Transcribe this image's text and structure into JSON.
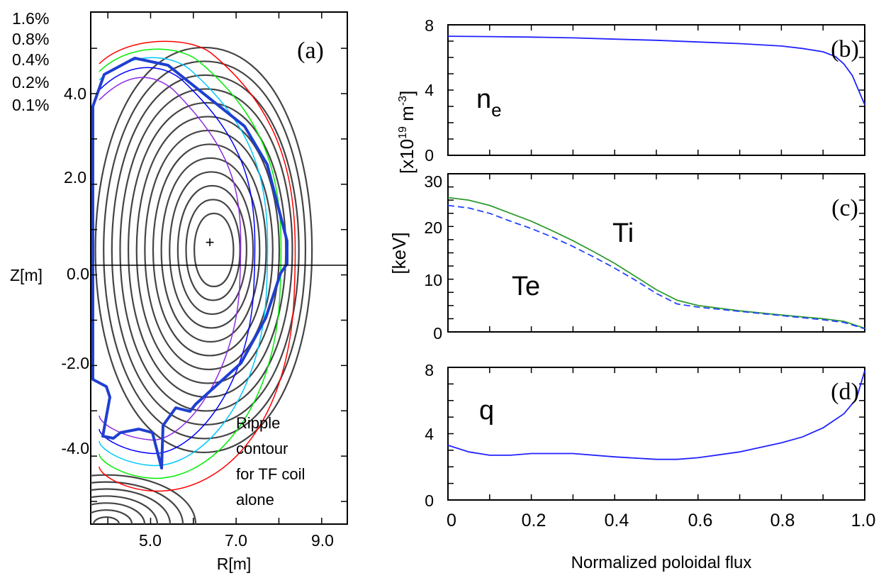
{
  "chart_data": [
    {
      "id": "a",
      "type": "contour",
      "panel_label": "(a)",
      "xlabel": "R[m]",
      "ylabel": "Z[m]",
      "xticks": [
        "5.0",
        "7.0",
        "9.0"
      ],
      "yticks": [
        "4.0",
        "2.0",
        "0.0",
        "-2.0",
        "-4.0"
      ],
      "xlim": [
        3.6,
        9.6
      ],
      "ylim": [
        -5.5,
        5.8
      ],
      "ripple_legend": [
        {
          "label": "1.6%",
          "color": "#ff0000"
        },
        {
          "label": "0.8%",
          "color": "#00ee00"
        },
        {
          "label": "0.4%",
          "color": "#00c8ff"
        },
        {
          "label": "0.2%",
          "color": "#0000ff"
        },
        {
          "label": "0.1%",
          "color": "#8a2be2"
        }
      ],
      "axis_center": {
        "R": 6.5,
        "Z": 0.55
      },
      "annotation": [
        "Ripple",
        "contour",
        "for TF coil",
        "alone"
      ],
      "wall_color": "#1f3fd0"
    },
    {
      "id": "b",
      "type": "line",
      "panel_label": "(b)",
      "ylabel_base": "[x10",
      "ylabel_exp1": "19",
      "ylabel_mid": " m",
      "ylabel_exp2": "-3",
      "ylabel_end": "]",
      "label_main": "n",
      "label_sub": "e",
      "ylim": [
        0,
        8
      ],
      "yticks": [
        "0",
        "4",
        "8"
      ],
      "series": [
        {
          "color": "#2222ff",
          "x": [
            0,
            0.1,
            0.2,
            0.3,
            0.4,
            0.5,
            0.6,
            0.7,
            0.8,
            0.85,
            0.9,
            0.93,
            0.95,
            0.97,
            1.0
          ],
          "y": [
            7.3,
            7.28,
            7.25,
            7.2,
            7.12,
            7.05,
            6.95,
            6.85,
            6.7,
            6.55,
            6.35,
            6.05,
            5.6,
            4.9,
            3.1
          ]
        }
      ]
    },
    {
      "id": "c",
      "type": "line",
      "panel_label": "(c)",
      "ylabel": "[keV]",
      "ylim": [
        0,
        30
      ],
      "yticks": [
        "0",
        "10",
        "20",
        "30"
      ],
      "series_labels": {
        "ti": "Ti",
        "te": "Te"
      },
      "series": [
        {
          "key": "ti",
          "color": "#2e9b2e",
          "dash": "",
          "x": [
            0,
            0.05,
            0.1,
            0.15,
            0.2,
            0.25,
            0.3,
            0.35,
            0.4,
            0.45,
            0.5,
            0.55,
            0.6,
            0.7,
            0.8,
            0.9,
            0.95,
            1.0
          ],
          "y": [
            25.5,
            25,
            24,
            22.5,
            21,
            19.2,
            17.3,
            15.2,
            13,
            10.5,
            8,
            6,
            5,
            4,
            3.2,
            2.5,
            2,
            0.7
          ]
        },
        {
          "key": "te",
          "color": "#2244ff",
          "dash": "9,5",
          "x": [
            0,
            0.05,
            0.1,
            0.15,
            0.2,
            0.25,
            0.3,
            0.35,
            0.4,
            0.45,
            0.5,
            0.55,
            0.6,
            0.7,
            0.8,
            0.9,
            0.95,
            1.0
          ],
          "y": [
            24,
            23.5,
            22.5,
            21,
            19.6,
            18,
            16.2,
            14.2,
            12.1,
            9.8,
            7.3,
            5.3,
            4.7,
            3.9,
            3.1,
            2.3,
            1.8,
            0.6
          ]
        }
      ]
    },
    {
      "id": "d",
      "type": "line",
      "panel_label": "(d)",
      "label": "q",
      "ylim": [
        0,
        8
      ],
      "yticks": [
        "0",
        "4",
        "8"
      ],
      "xticks": [
        "0",
        "0.2",
        "0.4",
        "0.6",
        "0.8",
        "1.0"
      ],
      "xlabel": "Normalized poloidal flux",
      "series": [
        {
          "color": "#2222ff",
          "x": [
            0,
            0.05,
            0.1,
            0.15,
            0.2,
            0.3,
            0.4,
            0.5,
            0.55,
            0.6,
            0.7,
            0.8,
            0.85,
            0.9,
            0.95,
            0.98,
            1.0
          ],
          "y": [
            3.3,
            2.9,
            2.7,
            2.7,
            2.8,
            2.8,
            2.6,
            2.45,
            2.45,
            2.55,
            2.9,
            3.45,
            3.8,
            4.35,
            5.2,
            6.1,
            7.8
          ]
        }
      ]
    }
  ]
}
